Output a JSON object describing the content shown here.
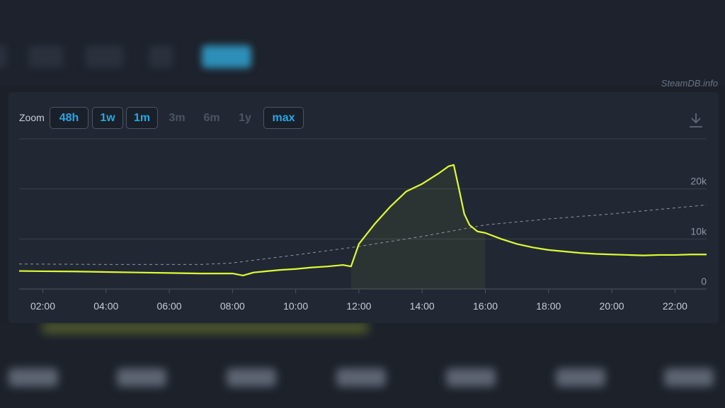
{
  "watermark": "SteamDB.info",
  "zoom": {
    "label": "Zoom",
    "buttons": [
      {
        "label": "48h",
        "active": true
      },
      {
        "label": "1w",
        "active": true
      },
      {
        "label": "1m",
        "active": true
      },
      {
        "label": "3m",
        "active": false
      },
      {
        "label": "6m",
        "active": false
      },
      {
        "label": "1y",
        "active": false
      },
      {
        "label": "max",
        "active": true
      }
    ]
  },
  "icons": {
    "download": "download-icon"
  },
  "colors": {
    "series": "#ddfb35",
    "average": "#8d96a3",
    "accent": "#27a6e6"
  },
  "chart_data": {
    "type": "line",
    "title": "",
    "xlabel": "",
    "ylabel": "",
    "x_ticks": [
      "02:00",
      "04:00",
      "06:00",
      "08:00",
      "10:00",
      "12:00",
      "14:00",
      "16:00",
      "18:00",
      "20:00",
      "22:00"
    ],
    "y_ticks": [
      "0",
      "10k",
      "20k"
    ],
    "xlim": [
      "01:15",
      "23:00"
    ],
    "ylim": [
      0,
      30000
    ],
    "grid": true,
    "series": [
      {
        "style": "solid",
        "points": [
          [
            "01:15",
            3600
          ],
          [
            "02:00",
            3550
          ],
          [
            "03:00",
            3500
          ],
          [
            "04:00",
            3400
          ],
          [
            "05:00",
            3300
          ],
          [
            "06:00",
            3200
          ],
          [
            "07:00",
            3100
          ],
          [
            "08:00",
            3100
          ],
          [
            "08:20",
            2700
          ],
          [
            "08:40",
            3300
          ],
          [
            "09:00",
            3500
          ],
          [
            "09:30",
            3800
          ],
          [
            "10:00",
            4000
          ],
          [
            "10:30",
            4300
          ],
          [
            "11:00",
            4500
          ],
          [
            "11:30",
            4800
          ],
          [
            "11:45",
            4500
          ],
          [
            "12:00",
            9000
          ],
          [
            "12:30",
            13000
          ],
          [
            "13:00",
            16500
          ],
          [
            "13:30",
            19500
          ],
          [
            "14:00",
            21000
          ],
          [
            "14:30",
            23000
          ],
          [
            "14:50",
            24500
          ],
          [
            "15:00",
            24800
          ],
          [
            "15:10",
            20000
          ],
          [
            "15:20",
            15000
          ],
          [
            "15:30",
            12800
          ],
          [
            "15:45",
            11500
          ],
          [
            "16:00",
            11200
          ],
          [
            "16:30",
            10000
          ],
          [
            "17:00",
            9000
          ],
          [
            "17:30",
            8300
          ],
          [
            "18:00",
            7800
          ],
          [
            "18:30",
            7500
          ],
          [
            "19:00",
            7200
          ],
          [
            "19:30",
            7000
          ],
          [
            "20:00",
            6900
          ],
          [
            "20:30",
            6800
          ],
          [
            "21:00",
            6700
          ],
          [
            "21:30",
            6800
          ],
          [
            "22:00",
            6800
          ],
          [
            "22:30",
            6900
          ],
          [
            "23:00",
            6900
          ]
        ]
      },
      {
        "style": "dashed",
        "points": [
          [
            "01:15",
            5000
          ],
          [
            "04:00",
            4900
          ],
          [
            "07:00",
            4900
          ],
          [
            "08:00",
            5200
          ],
          [
            "10:00",
            6800
          ],
          [
            "12:00",
            8500
          ],
          [
            "14:00",
            10500
          ],
          [
            "16:00",
            12800
          ],
          [
            "18:00",
            14000
          ],
          [
            "20:00",
            15000
          ],
          [
            "22:00",
            16200
          ],
          [
            "23:00",
            16800
          ]
        ]
      }
    ]
  }
}
